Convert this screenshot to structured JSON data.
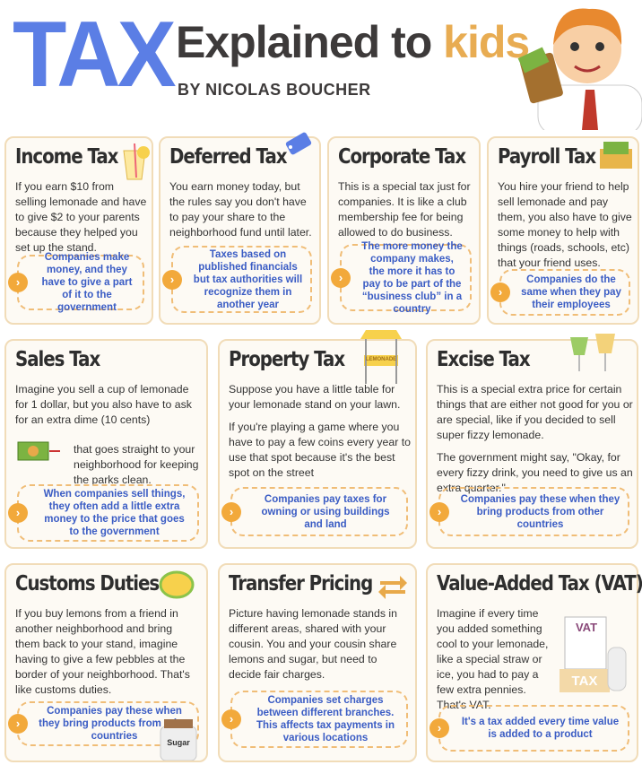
{
  "header": {
    "title_main": "TAX",
    "title_rest": "Explained to",
    "title_accent": "kids",
    "byline": "BY NICOLAS BOUCHER"
  },
  "cards": [
    {
      "title": "Income Tax",
      "paragraphs": [
        "If you earn $10 from selling lemonade and have to give $2 to your parents because they helped you set up the stand."
      ],
      "note": "Companies make money, and they have to give a part of it to the government"
    },
    {
      "title": "Deferred Tax",
      "paragraphs": [
        "You earn money today, but the rules say you don't have to pay your share to the neighborhood fund until later."
      ],
      "note": "Taxes based on published financials but tax authorities will recognize them in another year"
    },
    {
      "title": "Corporate Tax",
      "paragraphs": [
        "This is a special tax just for companies. It is like a club membership fee for being allowed to do business."
      ],
      "note": "The more money the company makes, the more it has to pay to be part of the “business club” in a country"
    },
    {
      "title": "Payroll Tax",
      "paragraphs": [
        "You hire your friend to help sell lemonade and pay them, you also have to give some money to help with things (roads, schools, etc) that your friend uses."
      ],
      "note": "Companies do the same when they pay their employees"
    },
    {
      "title": "Sales Tax",
      "paragraphs": [
        "Imagine you sell a cup of lemonade for 1 dollar, but you also have to ask for an extra dime (10 cents)",
        "that goes straight to your neighborhood for keeping the parks clean."
      ],
      "note": "When companies sell things, they often add a little extra money to the price that goes to the government"
    },
    {
      "title": "Property Tax",
      "paragraphs": [
        "Suppose you have a little table for your lemonade stand on your lawn.",
        "If you're playing a game where you have to pay a few coins every year to use that spot because it's the best spot on the street"
      ],
      "note": "Companies pay taxes for owning or using buildings and land",
      "icon_labels": [
        "LEMONADE"
      ]
    },
    {
      "title": "Excise Tax",
      "paragraphs": [
        "This is a special extra price for certain things that are either not good for you or are special, like if you decided to sell super fizzy lemonade.",
        "The government might say, \"Okay, for every fizzy drink, you need to give us an extra quarter.\""
      ],
      "note": "Companies pay these when they bring products from other countries"
    },
    {
      "title": "Customs Duties",
      "paragraphs": [
        "If you buy lemons from a friend in another neighborhood and bring them back to your stand, imagine having to give a few pebbles at the border of your neighborhood. That's like customs duties."
      ],
      "note": "Companies pay these when they bring products from other countries",
      "icon_labels": [
        "Sugar"
      ]
    },
    {
      "title": "Transfer Pricing",
      "paragraphs": [
        "Picture having lemonade stands in different areas, shared with your cousin. You and your cousin share lemons and sugar, but need to decide fair charges."
      ],
      "note": "Companies set charges between different branches. This affects tax payments in various locations"
    },
    {
      "title": "Value-Added Tax (VAT)",
      "paragraphs": [
        "Imagine if every time you added something cool to your lemonade, like a special straw or ice, you had to pay a few extra pennies. That's VAT."
      ],
      "note": "It's a tax added every time value is added to a product",
      "icon_labels": [
        "VAT",
        "TAX"
      ]
    }
  ]
}
